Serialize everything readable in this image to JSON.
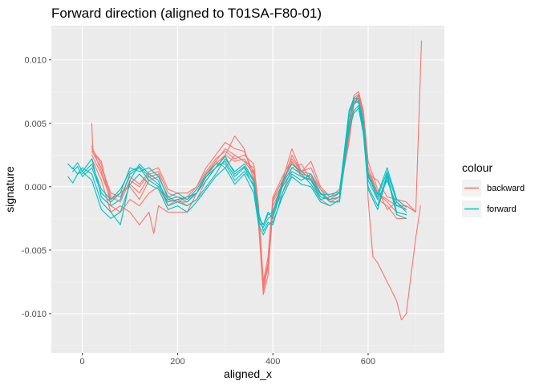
{
  "chart_data": {
    "type": "line",
    "title": "Forward direction (aligned to T01SA-F80-01)",
    "xlabel": "aligned_x",
    "ylabel": "signature",
    "xlim": [
      -65,
      760
    ],
    "ylim": [
      -0.0131,
      0.0127
    ],
    "x_ticks": [
      0,
      200,
      400,
      600
    ],
    "x_tick_labels": [
      "0",
      "200",
      "400",
      "600"
    ],
    "y_ticks": [
      -0.01,
      -0.005,
      0.0,
      0.005,
      0.01
    ],
    "y_tick_labels": [
      "-0.010",
      "-0.005",
      "0.000",
      "0.005",
      "0.010"
    ],
    "grid": true,
    "legend": {
      "title": "colour",
      "position": "right",
      "entries": [
        {
          "label": "backward",
          "color": "#F8766D"
        },
        {
          "label": "forward",
          "color": "#00BFC4"
        }
      ]
    },
    "series": [
      {
        "name": "backward",
        "color": "#F8766D",
        "x": [
          20,
          40,
          60,
          80,
          100,
          120,
          140,
          160,
          180,
          200,
          220,
          240,
          260,
          280,
          300,
          320,
          340,
          360,
          370,
          380,
          390,
          400,
          420,
          440,
          460,
          480,
          500,
          520,
          540,
          560,
          570,
          580,
          590,
          600,
          620,
          640,
          660,
          680,
          700
        ],
        "y": [
          0.003,
          0.0018,
          -0.0008,
          -0.0012,
          0.0005,
          0.0,
          0.001,
          0.0012,
          -0.0005,
          -0.0008,
          -0.001,
          -0.0005,
          0.001,
          0.002,
          0.003,
          0.0025,
          0.002,
          0.0015,
          -0.002,
          -0.008,
          -0.006,
          -0.001,
          0.0005,
          0.002,
          0.001,
          0.0008,
          -0.0005,
          -0.001,
          -0.0005,
          0.0045,
          0.0065,
          0.007,
          0.005,
          0.0015,
          -0.0005,
          -0.001,
          -0.0015,
          -0.0015,
          -0.002
        ]
      },
      {
        "name": "backward",
        "color": "#F8766D",
        "x": [
          20,
          40,
          60,
          80,
          100,
          120,
          140,
          160,
          180,
          200,
          220,
          240,
          260,
          280,
          300,
          320,
          340,
          360,
          370,
          380,
          390,
          400,
          420,
          440,
          460,
          480,
          500,
          520,
          540,
          560,
          570,
          580,
          590,
          600,
          620,
          640,
          660,
          680
        ],
        "y": [
          0.0025,
          0.001,
          -0.001,
          -0.0005,
          0.0,
          -0.001,
          0.0005,
          0.0008,
          -0.0008,
          -0.0012,
          -0.0008,
          0.0,
          0.0015,
          0.0025,
          0.0035,
          0.003,
          0.0028,
          0.001,
          -0.003,
          -0.0085,
          -0.007,
          -0.0015,
          0.0,
          0.0025,
          0.0012,
          0.0015,
          -0.0002,
          -0.0012,
          -0.0008,
          0.005,
          0.0072,
          0.0075,
          0.006,
          0.002,
          -0.0002,
          -0.0018,
          -0.0012,
          -0.0018
        ]
      },
      {
        "name": "backward",
        "color": "#F8766D",
        "x": [
          20,
          22,
          40,
          60,
          80,
          100,
          120,
          140,
          160,
          180,
          200,
          220,
          240,
          260,
          280,
          300,
          320,
          340,
          360,
          370,
          380,
          390,
          400,
          420,
          440,
          460,
          480,
          500,
          520,
          540,
          560,
          570,
          580,
          590,
          600,
          620,
          640,
          660,
          680
        ],
        "y": [
          0.005,
          0.0028,
          0.002,
          -0.0015,
          -0.002,
          -0.001,
          -0.0015,
          -0.0005,
          0.0,
          -0.0015,
          -0.001,
          -0.0015,
          -0.001,
          0.0005,
          0.0015,
          0.0025,
          0.004,
          0.003,
          0.0005,
          -0.0025,
          -0.0075,
          -0.0065,
          -0.002,
          -0.0005,
          0.0015,
          0.0018,
          0.0005,
          -0.001,
          -0.0015,
          -0.001,
          0.004,
          0.0068,
          0.0072,
          0.0055,
          0.001,
          -0.001,
          -0.0015,
          -0.0025,
          -0.0025
        ]
      },
      {
        "name": "backward",
        "color": "#F8766D",
        "x": [
          20,
          40,
          60,
          80,
          100,
          120,
          140,
          150,
          160,
          180,
          200,
          220,
          240,
          260,
          280,
          300,
          320,
          340,
          360,
          370,
          380,
          390,
          400,
          420,
          440,
          460,
          480,
          500,
          520,
          540,
          560,
          570,
          580,
          590,
          600,
          620,
          640,
          660,
          680
        ],
        "y": [
          0.0022,
          0.0005,
          -0.002,
          -0.0015,
          -0.002,
          -0.003,
          -0.002,
          -0.0037,
          -0.0015,
          -0.002,
          -0.002,
          -0.002,
          -0.0005,
          0.001,
          0.002,
          0.0015,
          0.0025,
          0.002,
          0.001,
          -0.002,
          -0.0078,
          -0.006,
          -0.001,
          0.0005,
          0.003,
          0.0012,
          0.002,
          0.0,
          -0.0008,
          -0.0005,
          0.0035,
          0.0065,
          0.0072,
          0.0058,
          0.0012,
          -0.0005,
          -0.0012,
          -0.002,
          -0.0022
        ]
      },
      {
        "name": "backward",
        "color": "#F8766D",
        "x": [
          20,
          40,
          60,
          80,
          100,
          120,
          140,
          160,
          180,
          200,
          220,
          240,
          260,
          280,
          300,
          320,
          340,
          360,
          370,
          380,
          390,
          400,
          420,
          440,
          460,
          480,
          500,
          520,
          540,
          560,
          570,
          580,
          590,
          600,
          620,
          640,
          660,
          680,
          700,
          712
        ],
        "y": [
          0.0028,
          0.0015,
          -0.0005,
          -0.0008,
          0.0008,
          0.0002,
          0.0012,
          0.0015,
          -0.0002,
          -0.0005,
          -0.0005,
          0.0,
          0.0012,
          0.0022,
          0.0028,
          0.0022,
          0.0025,
          0.0018,
          -0.0015,
          -0.0075,
          -0.0055,
          -0.0008,
          0.0008,
          0.0022,
          0.0012,
          0.001,
          -0.0002,
          -0.0008,
          -0.0002,
          0.0048,
          0.007,
          0.0073,
          0.0058,
          0.001,
          0.0005,
          -0.0008,
          -0.001,
          -0.0012,
          -0.002,
          0.0115
        ]
      },
      {
        "name": "backward",
        "color": "#F8766D",
        "x": [
          20,
          40,
          60,
          80,
          100,
          120,
          140,
          160,
          180,
          200,
          220,
          240,
          260,
          280,
          300,
          320,
          340,
          360,
          370,
          380,
          390,
          400,
          420,
          440,
          460,
          480,
          500,
          520,
          540,
          560,
          570,
          580,
          590,
          595,
          600,
          610,
          620,
          640,
          660,
          670,
          680,
          690,
          700,
          710
        ],
        "y": [
          0.0032,
          0.0012,
          -0.001,
          -0.0005,
          0.0002,
          -0.0005,
          0.0008,
          0.001,
          -0.001,
          -0.0012,
          -0.0012,
          -0.0005,
          0.0008,
          0.0018,
          0.0025,
          0.002,
          0.0022,
          0.0012,
          -0.0022,
          -0.0082,
          -0.0062,
          -0.0012,
          0.0002,
          0.002,
          0.0008,
          0.0006,
          -0.0005,
          -0.0012,
          -0.0008,
          0.0042,
          0.0066,
          0.007,
          0.0052,
          0.004,
          -0.001,
          -0.0055,
          -0.006,
          -0.0075,
          -0.009,
          -0.0105,
          -0.01,
          -0.007,
          -0.004,
          -0.0015
        ]
      },
      {
        "name": "forward",
        "color": "#00BFC4",
        "x": [
          -30,
          -20,
          -10,
          0,
          20,
          40,
          60,
          80,
          100,
          120,
          140,
          160,
          180,
          200,
          220,
          240,
          260,
          280,
          300,
          320,
          340,
          360,
          370,
          380,
          390,
          400,
          420,
          440,
          460,
          480,
          500,
          520,
          540,
          560,
          570,
          580,
          590,
          600,
          620,
          640,
          660,
          680
        ],
        "y": [
          0.0018,
          0.0014,
          0.0019,
          0.0012,
          0.0022,
          -0.0008,
          -0.0015,
          -0.001,
          0.001,
          0.0015,
          0.0005,
          0.0,
          -0.0012,
          -0.001,
          -0.0008,
          -0.0005,
          0.0005,
          0.0015,
          0.002,
          0.0008,
          0.0015,
          0.0,
          -0.0025,
          -0.003,
          -0.002,
          -0.0025,
          0.0,
          0.0012,
          0.0008,
          0.0005,
          -0.0008,
          -0.001,
          -0.0008,
          0.0055,
          0.0065,
          0.0068,
          0.005,
          0.0005,
          -0.001,
          0.0005,
          -0.0015,
          -0.0018
        ]
      },
      {
        "name": "forward",
        "color": "#00BFC4",
        "x": [
          -30,
          -20,
          -10,
          0,
          20,
          40,
          60,
          80,
          100,
          120,
          140,
          160,
          180,
          200,
          220,
          240,
          260,
          280,
          300,
          320,
          340,
          360,
          370,
          380,
          390,
          400,
          420,
          440,
          460,
          480,
          500,
          520,
          540,
          560,
          570,
          580,
          590,
          600,
          620,
          640,
          660,
          680
        ],
        "y": [
          0.0008,
          0.0003,
          0.001,
          0.0015,
          0.001,
          -0.0012,
          -0.002,
          -0.003,
          0.0005,
          0.0018,
          0.001,
          0.0005,
          -0.0015,
          -0.0012,
          -0.0015,
          -0.001,
          0.0,
          0.001,
          0.0022,
          0.0012,
          0.0018,
          0.0005,
          -0.002,
          -0.0035,
          -0.0028,
          -0.003,
          -0.0005,
          0.001,
          0.0005,
          0.001,
          -0.0005,
          -0.0012,
          -0.0012,
          0.005,
          0.006,
          0.0064,
          0.0045,
          0.0,
          -0.0015,
          0.001,
          -0.002,
          -0.0022
        ]
      },
      {
        "name": "forward",
        "color": "#00BFC4",
        "x": [
          -20,
          -10,
          0,
          20,
          40,
          60,
          80,
          100,
          120,
          140,
          160,
          180,
          200,
          220,
          240,
          260,
          280,
          300,
          320,
          340,
          360,
          370,
          380,
          390,
          400,
          420,
          440,
          460,
          480,
          500,
          520,
          540,
          560,
          570,
          580,
          590,
          600,
          620,
          640,
          660,
          680
        ],
        "y": [
          0.0012,
          0.0016,
          0.0008,
          0.0015,
          -0.0005,
          -0.0012,
          -0.0005,
          0.0015,
          0.0012,
          0.0015,
          0.0008,
          -0.0008,
          -0.0005,
          -0.001,
          -0.0002,
          0.001,
          0.0018,
          0.0018,
          0.0005,
          0.0012,
          0.0002,
          -0.0028,
          -0.0032,
          -0.0025,
          -0.0022,
          0.0002,
          0.0015,
          0.001,
          0.0002,
          -0.001,
          -0.0008,
          -0.0005,
          0.0058,
          0.0068,
          0.0066,
          0.0048,
          0.0008,
          -0.0008,
          0.0012,
          -0.0012,
          -0.002
        ]
      },
      {
        "name": "forward",
        "color": "#00BFC4",
        "x": [
          -20,
          -10,
          0,
          20,
          40,
          60,
          80,
          100,
          120,
          140,
          160,
          180,
          200,
          220,
          240,
          260,
          280,
          300,
          320,
          340,
          360,
          370,
          380,
          390,
          400,
          420,
          440,
          460,
          480,
          500,
          520,
          540,
          560,
          570,
          580,
          590,
          600,
          620,
          640,
          660,
          680
        ],
        "y": [
          0.0015,
          0.001,
          0.0012,
          0.0005,
          -0.0018,
          -0.0025,
          -0.002,
          0.0002,
          0.001,
          0.0002,
          -0.0002,
          -0.0018,
          -0.0015,
          -0.002,
          -0.0012,
          -0.0002,
          0.0008,
          0.0015,
          0.0002,
          0.001,
          -0.0005,
          -0.003,
          -0.0038,
          -0.003,
          -0.0028,
          -0.0008,
          0.0008,
          0.0002,
          0.0,
          -0.0012,
          -0.0015,
          -0.001,
          0.0045,
          0.0058,
          0.0062,
          0.0042,
          -0.0002,
          -0.0018,
          0.0008,
          -0.0022,
          -0.0025
        ]
      },
      {
        "name": "forward",
        "color": "#00BFC4",
        "x": [
          0,
          20,
          40,
          60,
          80,
          100,
          120,
          140,
          160,
          180,
          200,
          220,
          240,
          260,
          280,
          300,
          320,
          340,
          360,
          370,
          380,
          390,
          400,
          420,
          440,
          460,
          480,
          500,
          520,
          540,
          560,
          570,
          580,
          590,
          600,
          620,
          640,
          660,
          680
        ],
        "y": [
          0.001,
          0.0018,
          -0.0002,
          -0.001,
          -0.0002,
          0.0012,
          0.0016,
          0.0008,
          0.0002,
          -0.001,
          -0.0008,
          -0.0012,
          -0.0005,
          0.0008,
          0.0015,
          0.0024,
          0.001,
          0.0016,
          0.0004,
          -0.0024,
          -0.003,
          -0.0022,
          -0.002,
          0.0004,
          0.0018,
          0.0012,
          0.0006,
          -0.0006,
          -0.0006,
          -0.0004,
          0.006,
          0.007,
          0.0069,
          0.0052,
          0.001,
          -0.0006,
          0.0015,
          -0.001,
          -0.0016
        ]
      }
    ]
  }
}
